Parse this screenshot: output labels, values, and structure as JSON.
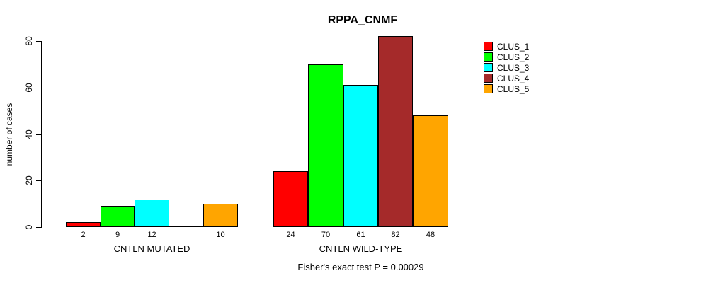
{
  "chart_data": {
    "type": "bar",
    "title": "RPPA_CNMF",
    "ylabel": "number of cases",
    "ylim": [
      0,
      80
    ],
    "yticks": [
      0,
      20,
      40,
      60,
      80
    ],
    "grid": false,
    "legend_position": "right",
    "axis_color": "#000000",
    "bar_border_color": "#000000",
    "groups": [
      "CNTLN MUTATED",
      "CNTLN WILD-TYPE"
    ],
    "series": [
      {
        "name": "CLUS_1",
        "color": "#ff0000",
        "values": [
          2,
          24
        ]
      },
      {
        "name": "CLUS_2",
        "color": "#00ff00",
        "values": [
          9,
          70
        ]
      },
      {
        "name": "CLUS_3",
        "color": "#00ffff",
        "values": [
          12,
          61
        ]
      },
      {
        "name": "CLUS_4",
        "color": "#a52a2a",
        "values": [
          0,
          82
        ]
      },
      {
        "name": "CLUS_5",
        "color": "#ffa500",
        "values": [
          10,
          48
        ]
      }
    ],
    "bar_value_labels": [
      [
        "2",
        "9",
        "12",
        "",
        "10"
      ],
      [
        "24",
        "70",
        "61",
        "82",
        "48"
      ]
    ],
    "annotation": "Fisher's exact test P = 0.00029"
  }
}
